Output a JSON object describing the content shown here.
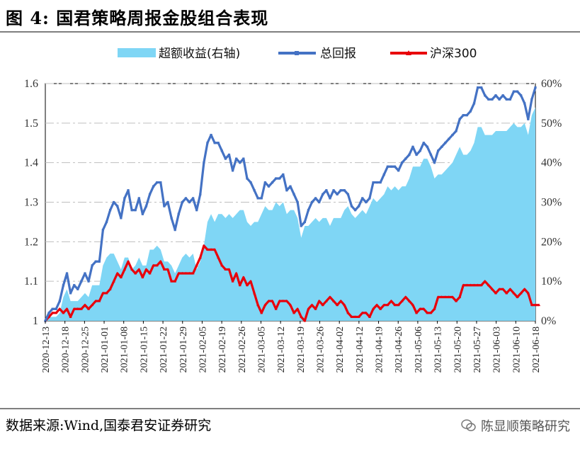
{
  "title": "图 4:  国君策略周报金股组合表现",
  "source": "数据来源:Wind,国泰君安证券研究",
  "watermark": "陈显顺策略研究",
  "colors": {
    "excess": "#7fd6f5",
    "total": "#4472c4",
    "hs300": "#e8000b"
  },
  "chart_data": {
    "type": "line",
    "legend": [
      "超额收益(右轴)",
      "总回报",
      "沪深300"
    ],
    "ylim_left": [
      1.0,
      1.6
    ],
    "yticks_left": [
      1,
      1.1,
      1.2,
      1.3,
      1.4,
      1.5,
      1.6
    ],
    "ytick_labels_left": [
      "1",
      "1.1",
      "1.2",
      "1.3",
      "1.4",
      "1.5",
      "1.6"
    ],
    "ylim_right": [
      0,
      0.6
    ],
    "ytick_labels_right": [
      "0%",
      "10%",
      "20%",
      "30%",
      "40%",
      "50%",
      "60%"
    ],
    "xtick_labels": [
      "2020-12-13",
      "2020-12-18",
      "2020-12-25",
      "2021-01-01",
      "2021-01-08",
      "2021-01-15",
      "2021-01-22",
      "2021-01-29",
      "2021-02-05",
      "2021-02-19",
      "2021-02-26",
      "2021-03-05",
      "2021-03-12",
      "2021-03-19",
      "2021-03-26",
      "2021-04-02",
      "2021-04-12",
      "2021-04-19",
      "2021-04-26",
      "2021-05-06",
      "2021-05-13",
      "2021-05-20",
      "2021-05-27",
      "2021-06-03",
      "2021-06-10",
      "2021-06-18"
    ],
    "series": [
      {
        "name": "总回报",
        "axis": "left",
        "values": [
          1.0,
          1.02,
          1.03,
          1.03,
          1.05,
          1.09,
          1.12,
          1.07,
          1.09,
          1.08,
          1.1,
          1.12,
          1.1,
          1.14,
          1.15,
          1.15,
          1.23,
          1.25,
          1.28,
          1.3,
          1.29,
          1.26,
          1.31,
          1.33,
          1.28,
          1.28,
          1.31,
          1.27,
          1.29,
          1.32,
          1.34,
          1.35,
          1.35,
          1.29,
          1.3,
          1.26,
          1.23,
          1.27,
          1.3,
          1.31,
          1.3,
          1.31,
          1.28,
          1.32,
          1.4,
          1.45,
          1.47,
          1.45,
          1.45,
          1.43,
          1.41,
          1.42,
          1.38,
          1.41,
          1.4,
          1.41,
          1.36,
          1.35,
          1.33,
          1.31,
          1.31,
          1.35,
          1.34,
          1.35,
          1.36,
          1.36,
          1.37,
          1.33,
          1.34,
          1.32,
          1.3,
          1.24,
          1.25,
          1.28,
          1.3,
          1.31,
          1.3,
          1.32,
          1.33,
          1.31,
          1.33,
          1.32,
          1.33,
          1.33,
          1.32,
          1.29,
          1.28,
          1.29,
          1.31,
          1.3,
          1.31,
          1.35,
          1.35,
          1.35,
          1.37,
          1.39,
          1.39,
          1.39,
          1.38,
          1.4,
          1.41,
          1.42,
          1.44,
          1.42,
          1.43,
          1.45,
          1.44,
          1.42,
          1.4,
          1.43,
          1.44,
          1.45,
          1.46,
          1.47,
          1.48,
          1.51,
          1.52,
          1.52,
          1.53,
          1.55,
          1.59,
          1.59,
          1.57,
          1.56,
          1.56,
          1.57,
          1.56,
          1.57,
          1.56,
          1.56,
          1.58,
          1.58,
          1.57,
          1.55,
          1.51,
          1.56,
          1.59
        ]
      },
      {
        "name": "沪深300",
        "axis": "left",
        "values": [
          1.0,
          1.01,
          1.02,
          1.02,
          1.03,
          1.02,
          1.03,
          1.01,
          1.03,
          1.03,
          1.03,
          1.04,
          1.03,
          1.04,
          1.05,
          1.05,
          1.07,
          1.07,
          1.08,
          1.1,
          1.12,
          1.11,
          1.13,
          1.15,
          1.13,
          1.12,
          1.13,
          1.11,
          1.13,
          1.12,
          1.14,
          1.14,
          1.15,
          1.13,
          1.13,
          1.1,
          1.1,
          1.12,
          1.12,
          1.12,
          1.12,
          1.12,
          1.14,
          1.16,
          1.19,
          1.18,
          1.18,
          1.18,
          1.16,
          1.14,
          1.13,
          1.13,
          1.1,
          1.12,
          1.09,
          1.11,
          1.09,
          1.1,
          1.07,
          1.04,
          1.02,
          1.04,
          1.05,
          1.05,
          1.03,
          1.05,
          1.05,
          1.05,
          1.04,
          1.02,
          1.03,
          1.01,
          1.0,
          1.03,
          1.04,
          1.03,
          1.05,
          1.04,
          1.05,
          1.06,
          1.05,
          1.04,
          1.05,
          1.04,
          1.02,
          1.01,
          1.01,
          1.01,
          1.02,
          1.02,
          1.01,
          1.03,
          1.04,
          1.03,
          1.04,
          1.04,
          1.05,
          1.04,
          1.04,
          1.05,
          1.06,
          1.05,
          1.04,
          1.02,
          1.03,
          1.03,
          1.02,
          1.02,
          1.03,
          1.06,
          1.06,
          1.06,
          1.06,
          1.06,
          1.05,
          1.06,
          1.09,
          1.09,
          1.09,
          1.09,
          1.09,
          1.09,
          1.1,
          1.09,
          1.08,
          1.07,
          1.08,
          1.08,
          1.07,
          1.08,
          1.07,
          1.06,
          1.07,
          1.08,
          1.07,
          1.04,
          1.04,
          1.04
        ]
      },
      {
        "name": "超额收益(右轴)",
        "axis": "right",
        "type": "area",
        "values": [
          0.0,
          0.01,
          0.01,
          0.01,
          0.02,
          0.06,
          0.08,
          0.05,
          0.05,
          0.05,
          0.06,
          0.07,
          0.06,
          0.09,
          0.09,
          0.09,
          0.14,
          0.16,
          0.17,
          0.17,
          0.15,
          0.13,
          0.16,
          0.16,
          0.13,
          0.14,
          0.16,
          0.14,
          0.14,
          0.18,
          0.18,
          0.19,
          0.18,
          0.15,
          0.15,
          0.14,
          0.12,
          0.14,
          0.16,
          0.17,
          0.16,
          0.17,
          0.13,
          0.15,
          0.19,
          0.25,
          0.27,
          0.25,
          0.27,
          0.27,
          0.26,
          0.27,
          0.26,
          0.27,
          0.28,
          0.28,
          0.25,
          0.24,
          0.25,
          0.25,
          0.27,
          0.29,
          0.28,
          0.28,
          0.3,
          0.29,
          0.3,
          0.27,
          0.28,
          0.28,
          0.26,
          0.21,
          0.24,
          0.24,
          0.25,
          0.26,
          0.25,
          0.26,
          0.26,
          0.24,
          0.26,
          0.26,
          0.26,
          0.28,
          0.29,
          0.27,
          0.26,
          0.27,
          0.28,
          0.27,
          0.29,
          0.31,
          0.3,
          0.31,
          0.32,
          0.34,
          0.33,
          0.34,
          0.33,
          0.34,
          0.34,
          0.36,
          0.39,
          0.39,
          0.39,
          0.41,
          0.41,
          0.39,
          0.36,
          0.37,
          0.37,
          0.38,
          0.39,
          0.4,
          0.42,
          0.44,
          0.42,
          0.42,
          0.43,
          0.45,
          0.49,
          0.49,
          0.47,
          0.47,
          0.47,
          0.48,
          0.48,
          0.48,
          0.48,
          0.49,
          0.5,
          0.49,
          0.49,
          0.5,
          0.47,
          0.52,
          0.54
        ]
      }
    ]
  }
}
